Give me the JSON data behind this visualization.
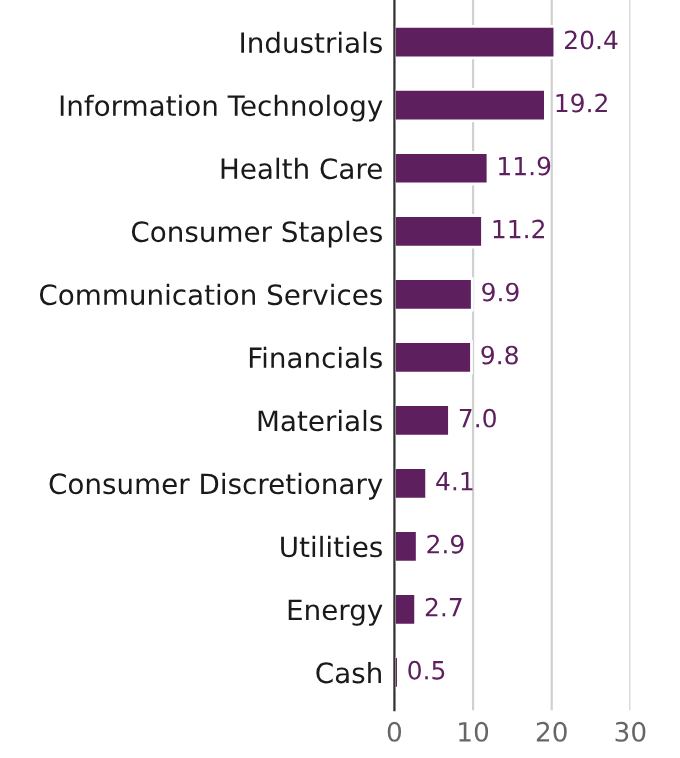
{
  "chart_data": {
    "type": "bar",
    "orientation": "horizontal",
    "categories": [
      "Industrials",
      "Information Technology",
      "Health Care",
      "Consumer Staples",
      "Communication Services",
      "Financials",
      "Materials",
      "Consumer Discretionary",
      "Utilities",
      "Energy",
      "Cash"
    ],
    "series": [
      {
        "color": "#5e1f5f",
        "values": [
          20.4,
          19.2,
          11.9,
          11.2,
          9.9,
          9.8,
          7.0,
          4.1,
          2.9,
          2.7,
          0.5
        ]
      }
    ],
    "value_labels": [
      "20.4",
      "19.2",
      "11.9",
      "11.2",
      "9.9",
      "9.8",
      "7.0",
      "4.1",
      "2.9",
      "2.7",
      "0.5"
    ],
    "xlim": [
      0,
      30
    ],
    "xticks": [
      0,
      10,
      20,
      30
    ],
    "grid": "x"
  }
}
